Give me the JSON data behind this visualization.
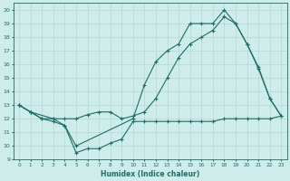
{
  "xlabel": "Humidex (Indice chaleur)",
  "xlim": [
    -0.5,
    23.5
  ],
  "ylim": [
    9,
    20.5
  ],
  "yticks": [
    9,
    10,
    11,
    12,
    13,
    14,
    15,
    16,
    17,
    18,
    19,
    20
  ],
  "xticks": [
    0,
    1,
    2,
    3,
    4,
    5,
    6,
    7,
    8,
    9,
    10,
    11,
    12,
    13,
    14,
    15,
    16,
    17,
    18,
    19,
    20,
    21,
    22,
    23
  ],
  "bg_color": "#ceecea",
  "line_color": "#1a6e65",
  "grid_color": "#b2d8d4",
  "line1_x": [
    0,
    1,
    2,
    3,
    4,
    5,
    6,
    7,
    8,
    9,
    10,
    11,
    12,
    13,
    14,
    15,
    16,
    17,
    18,
    19,
    20,
    21,
    22,
    23
  ],
  "line1_y": [
    13,
    12.5,
    12.0,
    11.8,
    11.5,
    9.5,
    9.8,
    9.8,
    10.2,
    10.5,
    11.8,
    11.8,
    11.8,
    11.8,
    11.8,
    11.8,
    11.8,
    11.8,
    12.0,
    12.0,
    12.0,
    12.0,
    12.0,
    12.2
  ],
  "line2_x": [
    0,
    1,
    2,
    3,
    4,
    5,
    6,
    7,
    8,
    9,
    10,
    11,
    12,
    13,
    14,
    15,
    16,
    17,
    18,
    19,
    20,
    21,
    22,
    23
  ],
  "line2_y": [
    13,
    12.5,
    12.0,
    12.0,
    12.0,
    12.0,
    12.3,
    12.5,
    12.5,
    12.0,
    12.2,
    12.5,
    13.5,
    15.0,
    16.5,
    17.5,
    18.0,
    18.5,
    19.5,
    19.0,
    17.5,
    15.8,
    13.5,
    12.2
  ],
  "line3_x": [
    0,
    1,
    3,
    4,
    5,
    10,
    11,
    12,
    13,
    14,
    15,
    16,
    17,
    18,
    19,
    20,
    21,
    22,
    23
  ],
  "line3_y": [
    13,
    12.5,
    12.0,
    11.5,
    10.0,
    12.0,
    14.5,
    16.2,
    17.0,
    17.5,
    19.0,
    19.0,
    19.0,
    20.0,
    19.0,
    17.5,
    15.7,
    13.5,
    12.2
  ]
}
